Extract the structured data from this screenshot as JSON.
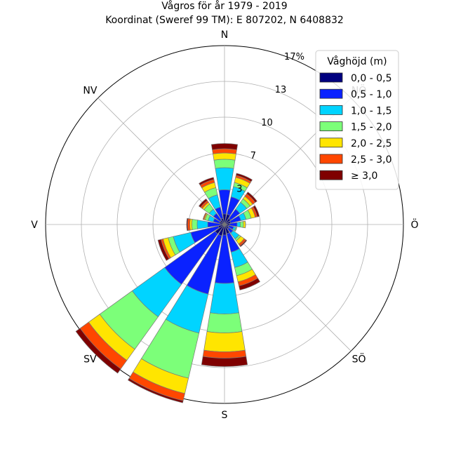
{
  "chart_data": {
    "type": "windrose",
    "title": "Vågros för år 1979 - 2019",
    "subtitle": "Koordinat (Sweref 99 TM): E 807202, N 6408832",
    "directions": [
      "N",
      "NNÖ",
      "NÖ",
      "ÖNÖ",
      "Ö",
      "ÖSÖ",
      "SÖ",
      "SSÖ",
      "S",
      "SSV",
      "SV",
      "VSV",
      "V",
      "VNV",
      "NV",
      "NNV"
    ],
    "cardinal_labels": {
      "N": "N",
      "NE": "NÖ",
      "E": "Ö",
      "SE": "SÖ",
      "S": "S",
      "SW": "SV",
      "W": "V",
      "NW": "NV"
    },
    "radial_ticks": [
      "3",
      "7",
      "10",
      "13",
      "17%"
    ],
    "radial_tick_values": [
      3.4,
      6.8,
      10.2,
      13.6,
      17
    ],
    "rmax": 17,
    "legend": {
      "title": "Våghöjd (m)",
      "placement": "top-right"
    },
    "bins": [
      {
        "label": "0,0 - 0,5",
        "color": "#00007f"
      },
      {
        "label": "0,5 - 1,0",
        "color": "#0a22ff"
      },
      {
        "label": "1,0 - 1,5",
        "color": "#00d4ff"
      },
      {
        "label": "1,5 - 2,0",
        "color": "#7cff79"
      },
      {
        "label": "2,0 - 2,5",
        "color": "#ffe500"
      },
      {
        "label": "2,5 - 3,0",
        "color": "#ff4700"
      },
      {
        "label": "≥ 3,0",
        "color": "#7f0000"
      }
    ],
    "cumulative": [
      [
        1.0,
        3.3,
        5.4,
        6.2,
        6.8,
        7.2,
        7.7
      ],
      [
        1.0,
        2.7,
        3.7,
        4.1,
        4.6,
        4.8,
        5.0
      ],
      [
        0.7,
        1.8,
        2.6,
        3.0,
        3.3,
        3.6,
        3.8
      ],
      [
        0.6,
        1.6,
        2.1,
        2.6,
        3.0,
        3.2,
        3.4
      ],
      [
        0.5,
        1.2,
        1.5,
        1.8,
        2.0,
        2.0,
        2.0
      ],
      [
        0.4,
        0.9,
        1.1,
        1.2,
        1.2,
        1.2,
        1.2
      ],
      [
        0.5,
        1.0,
        1.7,
        1.9,
        2.3,
        2.5,
        2.6
      ],
      [
        0.9,
        2.7,
        4.2,
        5.0,
        5.6,
        6.0,
        6.4
      ],
      [
        1.0,
        5.6,
        8.5,
        10.3,
        12.1,
        12.7,
        13.5
      ],
      [
        1.1,
        6.8,
        10.6,
        15.0,
        16.5,
        17.2,
        17.4
      ],
      [
        1.1,
        7.0,
        10.8,
        14.6,
        15.9,
        16.9,
        17.4
      ],
      [
        0.6,
        3.3,
        5.0,
        5.5,
        6.0,
        6.2,
        6.5
      ],
      [
        0.4,
        1.6,
        2.6,
        3.1,
        3.3,
        3.5,
        3.6
      ],
      [
        0.5,
        1.1,
        1.6,
        1.9,
        2.0,
        2.1,
        2.1
      ],
      [
        0.5,
        1.3,
        1.8,
        2.4,
        2.6,
        2.8,
        3.0
      ],
      [
        0.6,
        1.7,
        2.9,
        3.6,
        4.1,
        4.4,
        4.6
      ]
    ]
  }
}
